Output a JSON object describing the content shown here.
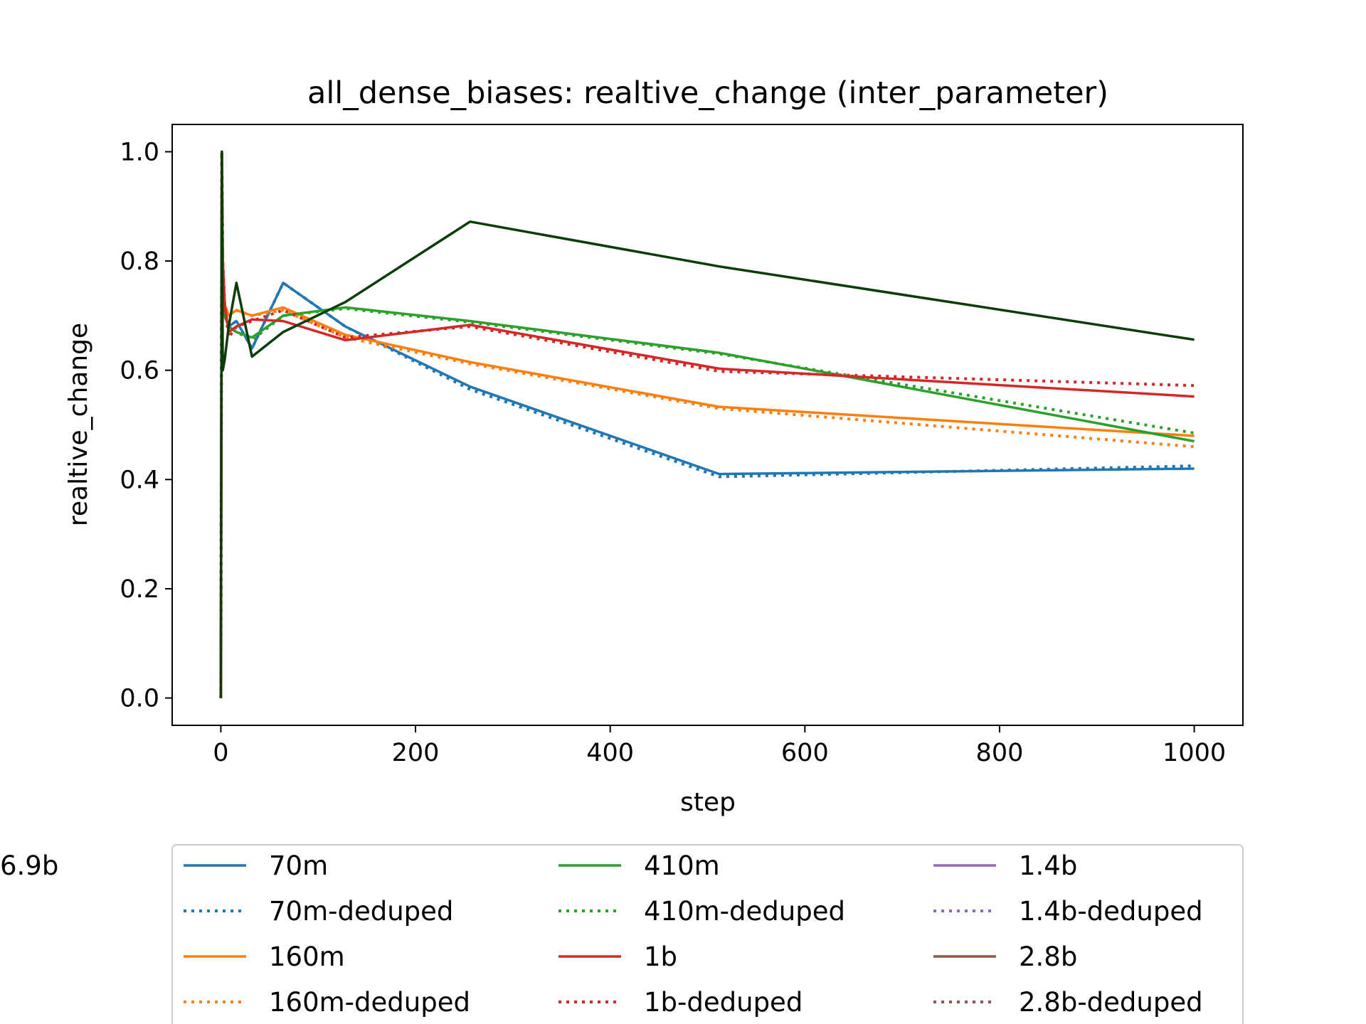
{
  "chart_data": {
    "type": "line",
    "title": "all_dense_biases: realtive_change (inter_parameter)",
    "xlabel": "step",
    "ylabel": "realtive_change",
    "xlim": [
      -50,
      1050
    ],
    "ylim": [
      -0.05,
      1.05
    ],
    "xticks": [
      0,
      200,
      400,
      600,
      800,
      1000
    ],
    "yticks": [
      0.0,
      0.2,
      0.4,
      0.6,
      0.8,
      1.0
    ],
    "xtick_labels": [
      "0",
      "200",
      "400",
      "600",
      "800",
      "1000"
    ],
    "ytick_labels": [
      "0.0",
      "0.2",
      "0.4",
      "0.6",
      "0.8",
      "1.0"
    ],
    "grid": false,
    "legend_position": "below plot, 3 columns",
    "series": [
      {
        "name": "70m",
        "color": "#1f77b4",
        "style": "solid",
        "x": [
          0,
          1,
          2,
          4,
          8,
          16,
          32,
          64,
          128,
          256,
          512,
          1000
        ],
        "y": [
          0.0,
          1.0,
          0.8,
          0.7,
          0.68,
          0.69,
          0.64,
          0.76,
          0.68,
          0.57,
          0.41,
          0.42
        ]
      },
      {
        "name": "70m-deduped",
        "color": "#1f77b4",
        "style": "dotted",
        "x": [
          0,
          1,
          2,
          4,
          8,
          16,
          32,
          64,
          128,
          256,
          512,
          1000
        ],
        "y": [
          0.0,
          1.0,
          0.8,
          0.7,
          0.68,
          0.69,
          0.64,
          0.76,
          0.68,
          0.565,
          0.405,
          0.425
        ]
      },
      {
        "name": "160m",
        "color": "#ff7f0e",
        "style": "solid",
        "x": [
          0,
          1,
          2,
          4,
          8,
          16,
          32,
          64,
          128,
          256,
          512,
          1000
        ],
        "y": [
          0.0,
          1.0,
          0.8,
          0.72,
          0.7,
          0.71,
          0.7,
          0.715,
          0.665,
          0.615,
          0.533,
          0.48
        ]
      },
      {
        "name": "160m-deduped",
        "color": "#ff7f0e",
        "style": "dotted",
        "x": [
          0,
          1,
          2,
          4,
          8,
          16,
          32,
          64,
          128,
          256,
          512,
          1000
        ],
        "y": [
          0.0,
          1.0,
          0.8,
          0.72,
          0.7,
          0.71,
          0.7,
          0.71,
          0.66,
          0.612,
          0.53,
          0.46
        ]
      },
      {
        "name": "410m",
        "color": "#2ca02c",
        "style": "solid",
        "x": [
          0,
          1,
          2,
          4,
          8,
          16,
          32,
          64,
          128,
          256,
          512,
          1000
        ],
        "y": [
          0.0,
          1.0,
          0.8,
          0.7,
          0.68,
          0.67,
          0.66,
          0.7,
          0.715,
          0.69,
          0.632,
          0.47
        ]
      },
      {
        "name": "410m-deduped",
        "color": "#2ca02c",
        "style": "dotted",
        "x": [
          0,
          1,
          2,
          4,
          8,
          16,
          32,
          64,
          128,
          256,
          512,
          1000
        ],
        "y": [
          0.0,
          1.0,
          0.8,
          0.7,
          0.68,
          0.67,
          0.655,
          0.7,
          0.713,
          0.688,
          0.63,
          0.485
        ]
      },
      {
        "name": "1b",
        "color": "#d62728",
        "style": "solid",
        "x": [
          0,
          1,
          2,
          4,
          8,
          16,
          32,
          64,
          128,
          256,
          512,
          1000
        ],
        "y": [
          0.0,
          1.0,
          0.8,
          0.72,
          0.67,
          0.68,
          0.693,
          0.69,
          0.655,
          0.683,
          0.603,
          0.552
        ]
      },
      {
        "name": "1b-deduped",
        "color": "#d62728",
        "style": "dotted",
        "x": [
          0,
          1,
          2,
          4,
          8,
          16,
          32,
          64,
          128,
          256,
          512,
          1000
        ],
        "y": [
          0.0,
          1.0,
          0.8,
          0.72,
          0.66,
          0.68,
          0.69,
          0.71,
          0.66,
          0.68,
          0.598,
          0.572
        ]
      },
      {
        "name": "1.4b",
        "color": "#9467bd",
        "style": "solid",
        "x": [],
        "y": []
      },
      {
        "name": "1.4b-deduped",
        "color": "#9467bd",
        "style": "dotted",
        "x": [],
        "y": []
      },
      {
        "name": "2.8b",
        "color": "#8c564b",
        "style": "solid",
        "x": [],
        "y": []
      },
      {
        "name": "2.8b-deduped",
        "color": "#8c564b",
        "style": "dotted",
        "x": [],
        "y": []
      },
      {
        "name": "6.9b",
        "color": "#0a3d0a",
        "style": "solid",
        "x": [
          0,
          1,
          2,
          4,
          8,
          16,
          32,
          64,
          128,
          256,
          512,
          1000
        ],
        "y": [
          0.0,
          1.0,
          0.6,
          0.62,
          0.68,
          0.76,
          0.625,
          0.67,
          0.725,
          0.872,
          0.79,
          0.656
        ]
      }
    ]
  }
}
